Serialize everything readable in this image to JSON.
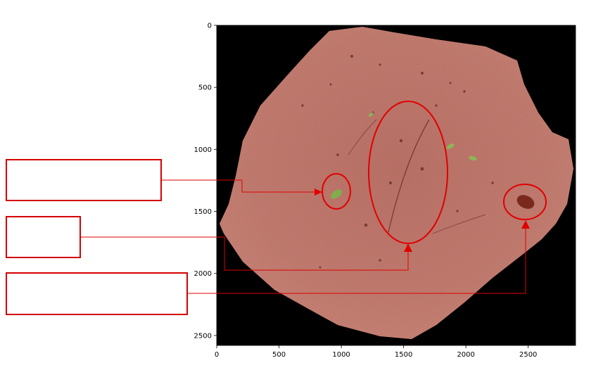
{
  "image": {
    "x_ticks": [
      "0",
      "500",
      "1000",
      "1500",
      "2000",
      "2500"
    ],
    "y_ticks": [
      "0",
      "500",
      "1000",
      "1500",
      "2000",
      "2500"
    ],
    "x_range": [
      0,
      2880
    ],
    "y_range": [
      2580,
      0
    ]
  },
  "colors": {
    "annotation": "#e00000",
    "specimen": "#c47a6e",
    "background": "#000000",
    "green_speck": "#7fae4a",
    "dark_spot": "#7a2a1c"
  },
  "callouts": [
    {
      "label": ""
    },
    {
      "label": ""
    },
    {
      "label": ""
    }
  ]
}
